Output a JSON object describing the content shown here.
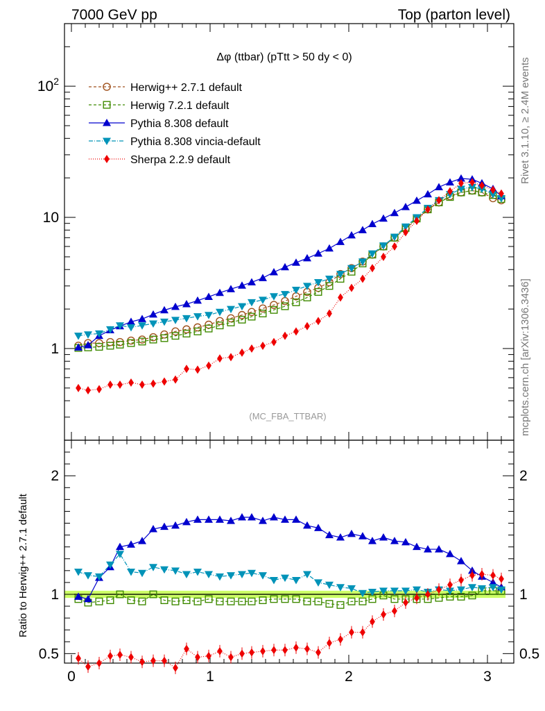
{
  "header": {
    "left": "7000 GeV pp",
    "right": "Top (parton level)"
  },
  "side": {
    "rivet": "Rivet 3.1.10, ≥ 2.4M events",
    "mcplots": "mcplots.cern.ch [arXiv:1306.3436]"
  },
  "plot": {
    "title": "Δφ (ttbar) (pTtt > 50 dy < 0)",
    "watermark": "(MC_FBA_TTBAR)",
    "ratio_ylabel": "Ratio to Herwig++ 2.7.1 default"
  },
  "chart_data": {
    "type": "line",
    "x": [
      0.05,
      0.12,
      0.2,
      0.28,
      0.35,
      0.43,
      0.51,
      0.59,
      0.67,
      0.75,
      0.83,
      0.91,
      0.99,
      1.07,
      1.15,
      1.23,
      1.3,
      1.38,
      1.46,
      1.54,
      1.62,
      1.7,
      1.78,
      1.86,
      1.94,
      2.02,
      2.1,
      2.17,
      2.25,
      2.33,
      2.41,
      2.49,
      2.57,
      2.65,
      2.73,
      2.81,
      2.89,
      2.96,
      3.04,
      3.1
    ],
    "main": {
      "ylog": true,
      "ylim": [
        0.2,
        300
      ],
      "yticks": [
        {
          "v": 1,
          "label": "1"
        },
        {
          "v": 10,
          "label": "10"
        }
      ],
      "ytick_power": {
        "v": 100,
        "base": "10",
        "exp": "2"
      }
    },
    "ratio": {
      "ylim": [
        0.42,
        2.3
      ],
      "yticks": [
        {
          "v": 0.5,
          "label": "0.5"
        },
        {
          "v": 1,
          "label": "1"
        },
        {
          "v": 2,
          "label": "2"
        }
      ],
      "band": [
        0.97,
        1.03
      ]
    },
    "xlim": [
      -0.05,
      3.19
    ],
    "xticks": [
      {
        "v": 0,
        "label": "0"
      },
      {
        "v": 1,
        "label": "1"
      },
      {
        "v": 2,
        "label": "2"
      },
      {
        "v": 3,
        "label": "3"
      }
    ],
    "series": [
      {
        "name": "Herwig++ 2.7.1 default",
        "color": "#a0521d",
        "marker": "circle-open",
        "dash": "4,3",
        "values": [
          1.05,
          1.1,
          1.1,
          1.12,
          1.12,
          1.15,
          1.17,
          1.22,
          1.28,
          1.35,
          1.4,
          1.45,
          1.52,
          1.62,
          1.7,
          1.8,
          1.9,
          2.02,
          2.15,
          2.3,
          2.5,
          2.7,
          2.9,
          3.2,
          3.7,
          4.1,
          4.6,
          5.2,
          6.0,
          7.0,
          8.2,
          9.7,
          11.5,
          13.0,
          14.5,
          15.5,
          16.0,
          15.5,
          14.0,
          13.5
        ]
      },
      {
        "name": "Herwig 7.2.1 default",
        "color": "#3f8a00",
        "marker": "square-open",
        "dash": "4,3",
        "values": [
          1.01,
          1.02,
          1.03,
          1.05,
          1.07,
          1.1,
          1.13,
          1.17,
          1.2,
          1.25,
          1.3,
          1.35,
          1.42,
          1.5,
          1.58,
          1.66,
          1.75,
          1.85,
          1.97,
          2.1,
          2.25,
          2.45,
          2.7,
          3.0,
          3.4,
          3.85,
          4.45,
          5.2,
          6.0,
          7.0,
          8.3,
          9.8,
          11.5,
          13.0,
          14.3,
          15.5,
          16.0,
          15.5,
          14.8,
          13.8
        ]
      },
      {
        "name": "Pythia 8.308 default",
        "color": "#0000ce",
        "marker": "triangle-up",
        "dash": "",
        "values": [
          1.02,
          1.06,
          1.25,
          1.38,
          1.48,
          1.6,
          1.68,
          1.82,
          1.96,
          2.08,
          2.18,
          2.32,
          2.48,
          2.66,
          2.84,
          3.02,
          3.2,
          3.45,
          3.82,
          4.17,
          4.52,
          4.88,
          5.3,
          5.8,
          6.5,
          7.3,
          8.0,
          8.9,
          9.8,
          10.8,
          12.0,
          13.4,
          15.0,
          17.0,
          18.5,
          19.8,
          19.5,
          18.2,
          16.5,
          14.5
        ]
      },
      {
        "name": "Pythia 8.308 vincia-default",
        "color": "#0093b8",
        "marker": "triangle-down",
        "dash": "6,2,1,2",
        "values": [
          1.25,
          1.28,
          1.3,
          1.4,
          1.5,
          1.45,
          1.5,
          1.55,
          1.6,
          1.65,
          1.7,
          1.76,
          1.8,
          1.9,
          2.0,
          2.1,
          2.25,
          2.35,
          2.5,
          2.6,
          2.8,
          3.0,
          3.2,
          3.4,
          3.7,
          4.1,
          4.6,
          5.3,
          6.1,
          7.1,
          8.5,
          10.0,
          11.8,
          13.5,
          15.0,
          16.5,
          17.0,
          16.5,
          15.0,
          14.0
        ]
      },
      {
        "name": "Sherpa 2.2.9 default",
        "color": "#ee0000",
        "marker": "diamond",
        "dash": "1,2",
        "values": [
          0.5,
          0.48,
          0.49,
          0.53,
          0.53,
          0.55,
          0.53,
          0.54,
          0.56,
          0.58,
          0.7,
          0.69,
          0.74,
          0.84,
          0.86,
          0.93,
          1.0,
          1.05,
          1.12,
          1.25,
          1.35,
          1.48,
          1.62,
          1.85,
          2.45,
          2.9,
          3.4,
          4.1,
          5.0,
          6.0,
          7.7,
          9.4,
          11.5,
          13.5,
          15.8,
          18.2,
          18.5,
          17.5,
          16.2,
          15.2
        ]
      }
    ],
    "ratio_series": [
      {
        "name": "Herwig 7.2.1 default",
        "values": [
          0.96,
          0.93,
          0.94,
          0.95,
          1.0,
          0.95,
          0.94,
          1.0,
          0.95,
          0.94,
          0.95,
          0.94,
          0.96,
          0.94,
          0.94,
          0.94,
          0.94,
          0.95,
          0.96,
          0.96,
          0.96,
          0.94,
          0.94,
          0.92,
          0.91,
          0.94,
          0.94,
          0.96,
          0.99,
          0.96,
          0.96,
          0.96,
          0.96,
          0.97,
          0.98,
          0.98,
          0.99,
          1.03,
          1.03,
          1.03
        ]
      },
      {
        "name": "Pythia 8.308 default",
        "values": [
          0.98,
          0.96,
          1.14,
          1.23,
          1.4,
          1.42,
          1.45,
          1.55,
          1.57,
          1.58,
          1.61,
          1.63,
          1.63,
          1.63,
          1.62,
          1.65,
          1.65,
          1.62,
          1.65,
          1.63,
          1.63,
          1.58,
          1.56,
          1.5,
          1.48,
          1.51,
          1.49,
          1.45,
          1.48,
          1.45,
          1.44,
          1.4,
          1.38,
          1.38,
          1.34,
          1.28,
          1.2,
          1.15,
          1.1,
          1.06
        ]
      },
      {
        "name": "Pythia 8.308 vincia-default",
        "values": [
          1.19,
          1.16,
          1.15,
          1.25,
          1.34,
          1.19,
          1.18,
          1.23,
          1.21,
          1.2,
          1.17,
          1.19,
          1.17,
          1.15,
          1.16,
          1.17,
          1.18,
          1.16,
          1.12,
          1.14,
          1.12,
          1.17,
          1.1,
          1.08,
          1.06,
          1.05,
          1.01,
          1.02,
          1.03,
          1.03,
          1.03,
          1.04,
          1.02,
          1.04,
          1.03,
          1.04,
          1.06,
          1.05,
          1.06,
          1.04
        ]
      },
      {
        "name": "Sherpa 2.2.9 default",
        "values": [
          0.46,
          0.39,
          0.42,
          0.48,
          0.49,
          0.47,
          0.43,
          0.44,
          0.44,
          0.38,
          0.54,
          0.47,
          0.48,
          0.52,
          0.47,
          0.5,
          0.51,
          0.52,
          0.53,
          0.53,
          0.55,
          0.54,
          0.51,
          0.59,
          0.62,
          0.68,
          0.68,
          0.77,
          0.83,
          0.86,
          0.93,
          0.97,
          1.0,
          1.04,
          1.08,
          1.12,
          1.16,
          1.17,
          1.16,
          1.13
        ]
      }
    ]
  }
}
